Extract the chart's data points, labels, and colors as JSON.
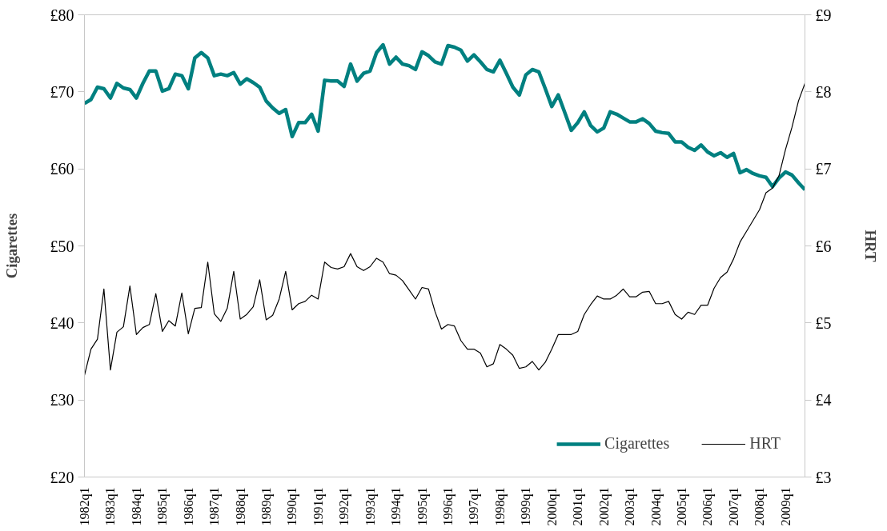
{
  "chart_data": {
    "type": "line",
    "ylabel": "Cigarettes",
    "y2label": "HRT",
    "categories": [
      "1982q1",
      null,
      null,
      null,
      "1983q1",
      null,
      null,
      null,
      "1984q1",
      null,
      null,
      null,
      "1985q1",
      null,
      null,
      null,
      "1986q1",
      null,
      null,
      null,
      "1987q1",
      null,
      null,
      null,
      "1988q1",
      null,
      null,
      null,
      "1989q1",
      null,
      null,
      null,
      "1990q1",
      null,
      null,
      null,
      "1991q1",
      null,
      null,
      null,
      "1992q1",
      null,
      null,
      null,
      "1993q1",
      null,
      null,
      null,
      "1994q1",
      null,
      null,
      null,
      "1995q1",
      null,
      null,
      null,
      "1996q1",
      null,
      null,
      null,
      "1997q1",
      null,
      null,
      null,
      "1998q1",
      null,
      null,
      null,
      "1999q1",
      null,
      null,
      null,
      "2000q1",
      null,
      null,
      null,
      "2001q1",
      null,
      null,
      null,
      "2002q1",
      null,
      null,
      null,
      "2003q1",
      null,
      null,
      null,
      "2004q1",
      null,
      null,
      null,
      "2005q1",
      null,
      null,
      null,
      "2006q1",
      null,
      null,
      null,
      "2007q1",
      null,
      null,
      null,
      "2008q1",
      null,
      null,
      null,
      "2009q1",
      null,
      null,
      null
    ],
    "series": [
      {
        "name": "Cigarettes",
        "color": "#008080",
        "values": [
          68.5,
          69.0,
          70.6,
          70.4,
          69.2,
          71.1,
          70.5,
          70.3,
          69.2,
          71.1,
          72.7,
          72.7,
          70.1,
          70.4,
          72.3,
          72.1,
          70.4,
          74.4,
          75.1,
          74.4,
          72.1,
          72.3,
          72.1,
          72.5,
          71.0,
          71.7,
          71.2,
          70.6,
          68.8,
          67.9,
          67.2,
          67.7,
          64.2,
          66.0,
          66.0,
          67.1,
          64.9,
          71.5,
          71.4,
          71.4,
          70.7,
          73.6,
          71.4,
          72.4,
          72.7,
          75.1,
          76.1,
          73.6,
          74.5,
          73.6,
          73.4,
          72.9,
          75.2,
          74.7,
          73.9,
          73.6,
          76.0,
          75.8,
          75.4,
          74.0,
          74.8,
          73.9,
          72.9,
          72.6,
          74.1,
          72.4,
          70.6,
          69.6,
          72.2,
          72.9,
          72.6,
          70.4,
          68.1,
          69.6,
          67.3,
          65.0,
          66.0,
          67.4,
          65.6,
          64.8,
          65.3,
          67.4,
          67.1,
          66.6,
          66.1,
          66.1,
          66.5,
          65.9,
          64.9,
          64.7,
          64.6,
          63.5,
          63.5,
          62.8,
          62.4,
          63.1,
          62.2,
          61.7,
          62.1,
          61.5,
          62.0,
          59.5,
          59.9,
          59.4,
          59.1,
          58.9,
          57.7,
          58.8,
          59.6,
          59.2,
          58.2,
          57.3
        ]
      },
      {
        "name": "HRT",
        "color": "#000000",
        "axis": "y2",
        "values": [
          4.32,
          4.66,
          4.79,
          5.44,
          4.39,
          4.88,
          4.95,
          5.48,
          4.85,
          4.94,
          4.98,
          5.38,
          4.89,
          5.03,
          4.96,
          5.39,
          4.86,
          5.19,
          5.2,
          5.79,
          5.12,
          5.02,
          5.19,
          5.67,
          5.05,
          5.11,
          5.21,
          5.56,
          5.04,
          5.1,
          5.31,
          5.67,
          5.17,
          5.25,
          5.28,
          5.36,
          5.31,
          5.79,
          5.72,
          5.7,
          5.73,
          5.9,
          5.73,
          5.68,
          5.73,
          5.84,
          5.79,
          5.64,
          5.62,
          5.55,
          5.43,
          5.31,
          5.46,
          5.44,
          5.15,
          4.92,
          4.98,
          4.96,
          4.77,
          4.66,
          4.66,
          4.61,
          4.43,
          4.47,
          4.72,
          4.66,
          4.58,
          4.41,
          4.43,
          4.5,
          4.39,
          4.49,
          4.66,
          4.85,
          4.85,
          4.85,
          4.89,
          5.11,
          5.24,
          5.35,
          5.31,
          5.31,
          5.36,
          5.44,
          5.34,
          5.34,
          5.4,
          5.41,
          5.25,
          5.25,
          5.28,
          5.11,
          5.05,
          5.14,
          5.11,
          5.23,
          5.23,
          5.45,
          5.59,
          5.66,
          5.83,
          6.05,
          6.19,
          6.33,
          6.47,
          6.69,
          6.75,
          6.91,
          7.25,
          7.54,
          7.88,
          8.11
        ]
      }
    ],
    "ylim": [
      20,
      80
    ],
    "yticks": [
      {
        "value": 20,
        "label": "£20"
      },
      {
        "value": 30,
        "label": "£30"
      },
      {
        "value": 40,
        "label": "£40"
      },
      {
        "value": 50,
        "label": "£50"
      },
      {
        "value": 60,
        "label": "£60"
      },
      {
        "value": 70,
        "label": "£70"
      },
      {
        "value": 80,
        "label": "£80"
      }
    ],
    "y2lim": [
      3,
      9
    ],
    "y2ticks": [
      {
        "value": 3,
        "label": "£3"
      },
      {
        "value": 4,
        "label": "£4"
      },
      {
        "value": 5,
        "label": "£5"
      },
      {
        "value": 6,
        "label": "£6"
      },
      {
        "value": 7,
        "label": "£7"
      },
      {
        "value": 8,
        "label": "£8"
      },
      {
        "value": 9,
        "label": "£9"
      }
    ],
    "legend": "bottom right"
  }
}
